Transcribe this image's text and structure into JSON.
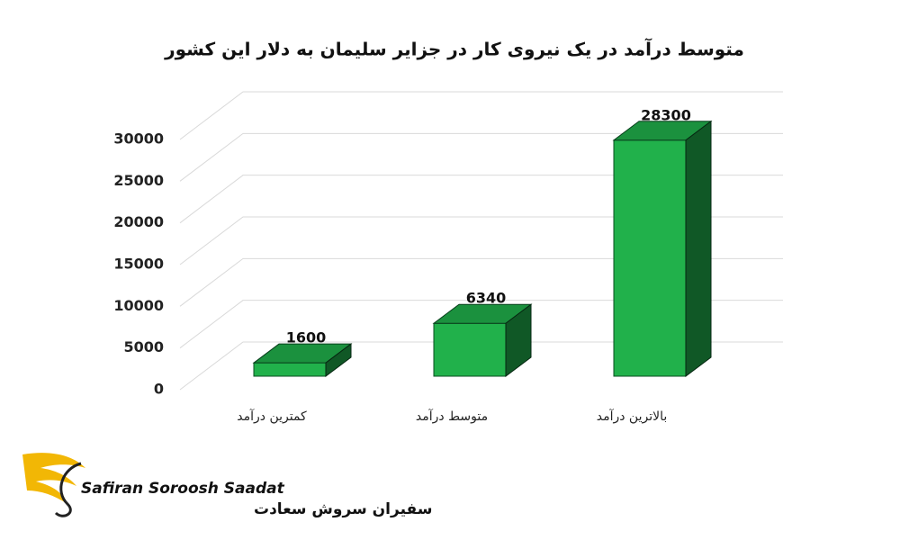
{
  "chart_data": {
    "type": "bar3d",
    "title": "متوسط درآمد در یک نیروی کار در جزایر سلیمان به دلار این کشور",
    "categories": [
      "کمترین درآمد",
      "متوسط درآمد",
      "بالاترین درآمد"
    ],
    "values": [
      1600,
      6340,
      28300
    ],
    "color": "#21b14b",
    "ylim": [
      0,
      30000
    ],
    "yticks": [
      0,
      5000,
      10000,
      15000,
      20000,
      25000,
      30000
    ],
    "grid": true
  },
  "logo": {
    "latin": "Safiran Soroosh Saadat",
    "persian": "سفیران سروش سعادت"
  }
}
